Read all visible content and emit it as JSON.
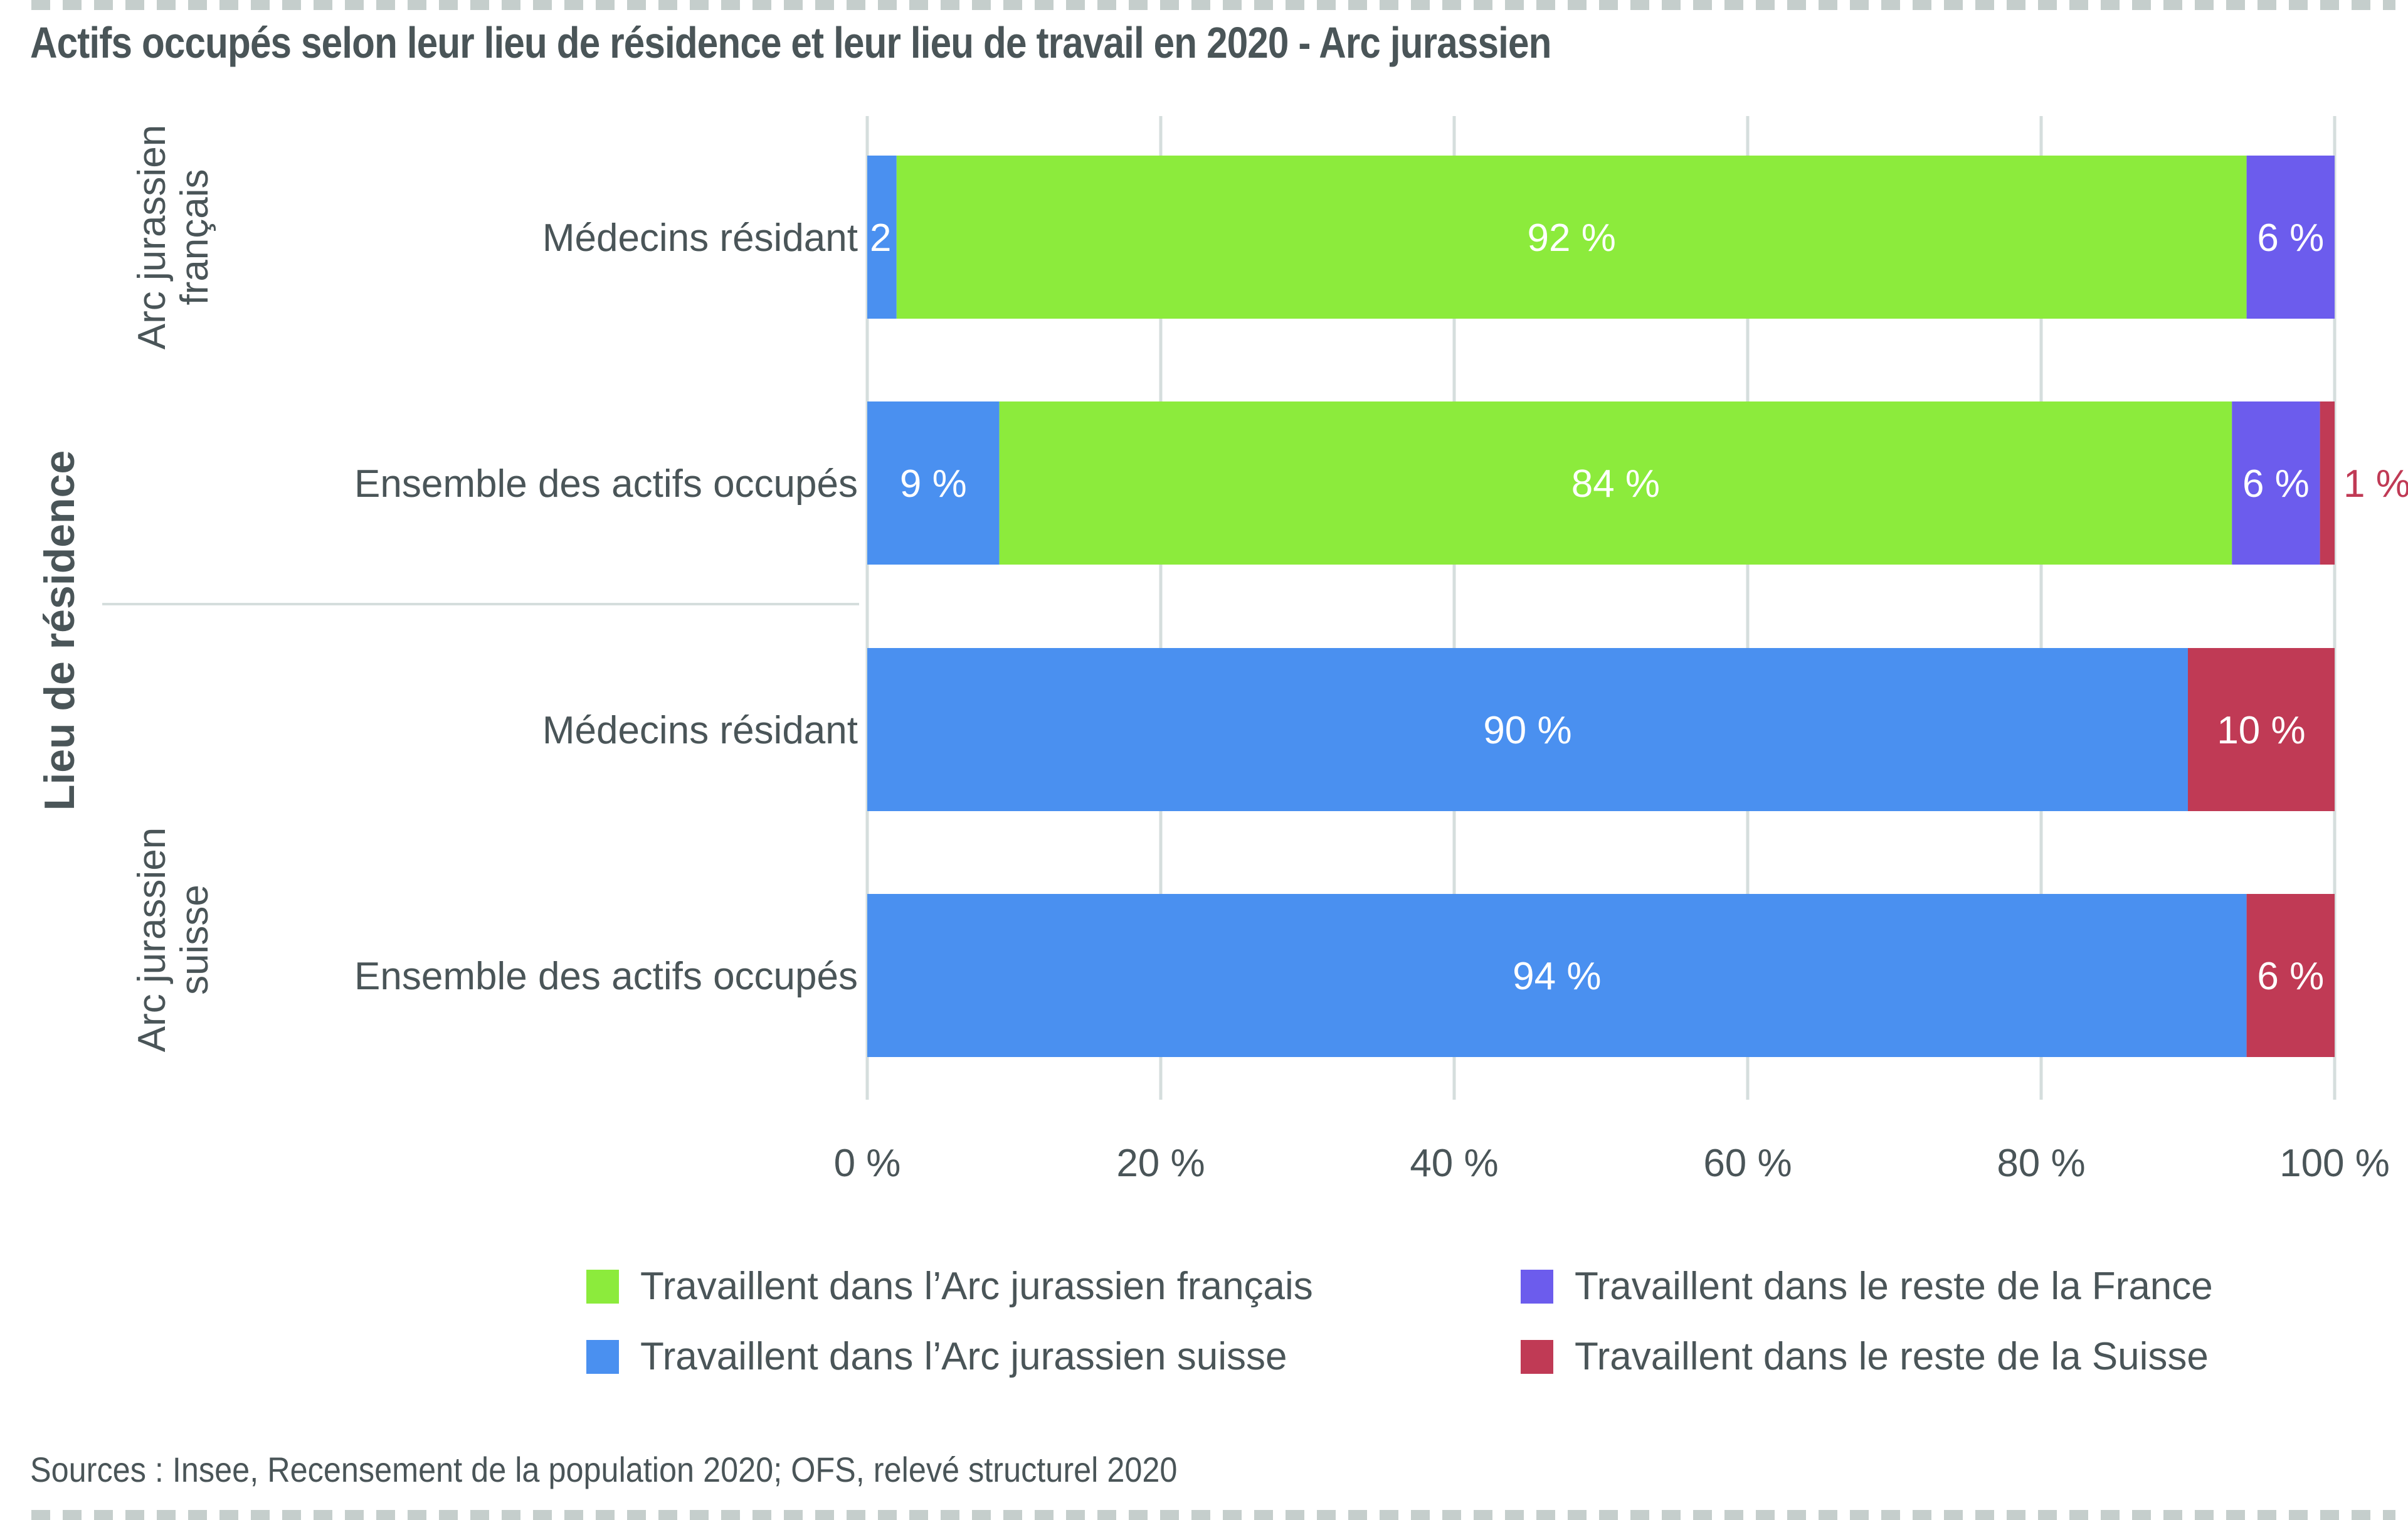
{
  "title": "Actifs occupés selon leur lieu de résidence et leur lieu de travail en 2020 - Arc jurassien",
  "source": "Sources : Insee, Recensement de la population 2020; OFS, relevé structurel 2020",
  "chart_data": {
    "type": "bar",
    "orientation": "horizontal",
    "stacked": true,
    "normalized": true,
    "title": "Actifs occupés selon leur lieu de résidence et leur lieu de travail en 2020 - Arc jurassien",
    "ylabel": "Lieu de résidence",
    "xlabel": "",
    "xlim": [
      0,
      100
    ],
    "grid": true,
    "legend_position": "bottom",
    "x_ticks": [
      "0 %",
      "20 %",
      "40 %",
      "60 %",
      "80 %",
      "100 %"
    ],
    "x_tick_values": [
      0,
      20,
      40,
      60,
      80,
      100
    ],
    "groups": [
      {
        "label": "Arc jurassien français",
        "label_lines": [
          "Arc jurassien",
          "français"
        ],
        "categories": [
          0,
          1
        ]
      },
      {
        "label": "Arc jurassien suisse",
        "label_lines": [
          "Arc jurassien",
          "suisse"
        ],
        "categories": [
          2,
          3
        ]
      }
    ],
    "categories": [
      "Médecins résidant",
      "Ensemble des actifs occupés",
      "Médecins résidant",
      "Ensemble des actifs occupés"
    ],
    "series": [
      {
        "name": "Travaillent dans l’Arc jurassien suisse",
        "color": "#4a90f0",
        "values": [
          2,
          9,
          90,
          94
        ],
        "labels": [
          "2 %",
          "9 %",
          "90 %",
          "94 %"
        ]
      },
      {
        "name": "Travaillent dans l’Arc jurassien français",
        "color": "#8ceb3c",
        "values": [
          92,
          84,
          0,
          0
        ],
        "labels": [
          "92 %",
          "84 %",
          "",
          ""
        ]
      },
      {
        "name": "Travaillent dans le reste de la France",
        "color": "#6c5ced",
        "values": [
          6,
          6,
          0,
          0
        ],
        "labels": [
          "6 %",
          "6 %",
          "",
          ""
        ]
      },
      {
        "name": "Travaillent dans le reste de la Suisse",
        "color": "#c03a55",
        "values": [
          0,
          1,
          10,
          6
        ],
        "labels": [
          "",
          "1 %",
          "10 %",
          "6 %"
        ]
      }
    ],
    "legend_order": [
      1,
      2,
      0,
      3
    ]
  },
  "colors": {
    "text": "#4a5558",
    "grid": "#d5dedd",
    "border": "#c5cecc",
    "outside_label": "#c03a55",
    "inside_label": "#ffffff"
  }
}
